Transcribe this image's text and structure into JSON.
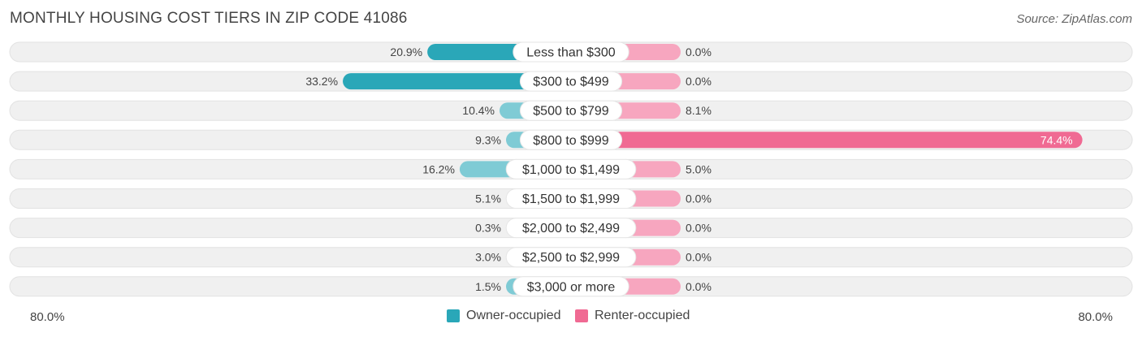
{
  "title": "MONTHLY HOUSING COST TIERS IN ZIP CODE 41086",
  "source": "Source: ZipAtlas.com",
  "colors": {
    "owner": "#2aa7b8",
    "owner_light": "#7fcbd5",
    "renter": "#f06a93",
    "renter_light": "#f7a6bf",
    "row_bg": "#f0f0f0"
  },
  "legend": {
    "owner_label": "Owner-occupied",
    "renter_label": "Renter-occupied"
  },
  "axis": {
    "left_label": "80.0%",
    "right_label": "80.0%"
  },
  "chart_data": {
    "type": "bar",
    "orientation": "horizontal-diverging",
    "categories": [
      "Less than $300",
      "$300 to $499",
      "$500 to $799",
      "$800 to $999",
      "$1,000 to $1,499",
      "$1,500 to $1,999",
      "$2,000 to $2,499",
      "$2,500 to $2,999",
      "$3,000 or more"
    ],
    "series": [
      {
        "name": "Owner-occupied",
        "values": [
          20.9,
          33.2,
          10.4,
          9.3,
          16.2,
          5.1,
          0.3,
          3.0,
          1.5
        ]
      },
      {
        "name": "Renter-occupied",
        "values": [
          0.0,
          0.0,
          8.1,
          74.4,
          5.0,
          0.0,
          0.0,
          0.0,
          0.0
        ]
      }
    ],
    "value_labels": {
      "owner": [
        "20.9%",
        "33.2%",
        "10.4%",
        "9.3%",
        "16.2%",
        "5.1%",
        "0.3%",
        "3.0%",
        "1.5%"
      ],
      "renter": [
        "0.0%",
        "0.0%",
        "8.1%",
        "74.4%",
        "5.0%",
        "0.0%",
        "0.0%",
        "0.0%",
        "0.0%"
      ]
    },
    "xlim": [
      -80,
      80
    ],
    "legend_position": "bottom-center"
  }
}
